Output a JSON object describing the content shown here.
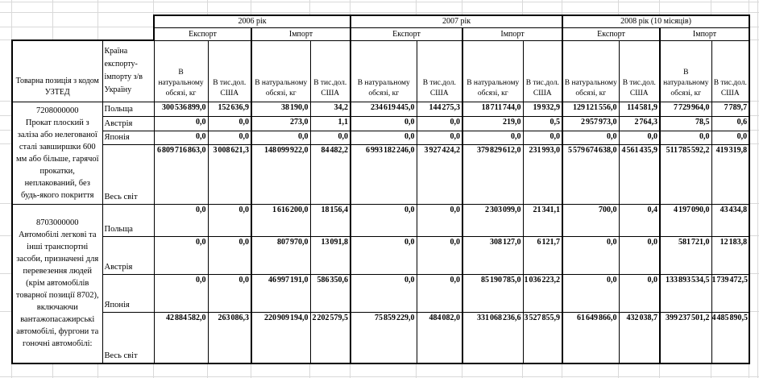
{
  "table": {
    "corner": {
      "product": "Товарна позиція з кодом УЗТЕД",
      "country": "Країна експорту-імпорту з/в Україну"
    },
    "years": [
      {
        "label": "2006 рік"
      },
      {
        "label": "2007 рік"
      },
      {
        "label": "2008 рік (10 місяців)"
      }
    ],
    "flow_labels": [
      "Експорт",
      "Імпорт"
    ],
    "measure_labels": [
      "В натуральному обсязі, кг",
      "В тис.дол. США"
    ],
    "blocks": [
      {
        "code": "7208000000",
        "description": "Прокат плоский з заліза або нелегованої сталі завширшки 600 мм або більше, гарячої прокатки, неплакований, без будь-якого покриття",
        "rows": [
          {
            "country": "Польща",
            "values": [
              "300 536 899,0",
              "152 636,9",
              "38 190,0",
              "34,2",
              "234 619 445,0",
              "144 275,3",
              "18 711 744,0",
              "19 932,9",
              "129 121 556,0",
              "114 581,9",
              "7 729 964,0",
              "7 789,7"
            ]
          },
          {
            "country": "Австрія",
            "values": [
              "0,0",
              "0,0",
              "273,0",
              "1,1",
              "0,0",
              "0,0",
              "219,0",
              "0,5",
              "2 957 973,0",
              "2 764,3",
              "78,5",
              "0,6"
            ]
          },
          {
            "country": "Японія",
            "values": [
              "0,0",
              "0,0",
              "0,0",
              "0,0",
              "0,0",
              "0,0",
              "0,0",
              "0,0",
              "0,0",
              "0,0",
              "0,0",
              "0,0"
            ]
          },
          {
            "country": "Весь світ",
            "values": [
              "6 809 716 863,0",
              "3 008 621,3",
              "148 099 922,0",
              "84 482,2",
              "6 993 182 246,0",
              "3 927 424,2",
              "379 829 612,0",
              "231 993,0",
              "5 579 674 638,0",
              "4 561 435,9",
              "511 785 592,2",
              "419 319,8"
            ]
          }
        ]
      },
      {
        "code": "8703000000",
        "description": "Автомобілі легкові та інші транспортні засоби, призначені для перевезення людей (крім автомобілів товарної позиції 8702), включаючи вантажопасажирські автомобілі, фургони та гоночні автомобілі:",
        "rows": [
          {
            "country": "Польща",
            "values": [
              "0,0",
              "0,0",
              "1 616 200,0",
              "18 156,4",
              "0,0",
              "0,0",
              "2 303 099,0",
              "21 341,1",
              "700,0",
              "0,4",
              "4 197 090,0",
              "43 434,8"
            ]
          },
          {
            "country": "Австрія",
            "values": [
              "0,0",
              "0,0",
              "807 970,0",
              "13 091,8",
              "0,0",
              "0,0",
              "308 127,0",
              "6 121,7",
              "0,0",
              "0,0",
              "581 721,0",
              "12 183,8"
            ]
          },
          {
            "country": "Японія",
            "values": [
              "0,0",
              "0,0",
              "46 997 191,0",
              "586 350,6",
              "0,0",
              "0,0",
              "85 190 785,0",
              "1 036 223,2",
              "0,0",
              "0,0",
              "133 893 534,5",
              "1 739 472,5"
            ]
          },
          {
            "country": "Весь світ",
            "values": [
              "42 884 582,0",
              "263 086,3",
              "220 909 194,0",
              "2 202 579,5",
              "75 859 229,0",
              "484 082,0",
              "331 068 236,6",
              "3 527 855,9",
              "61 649 866,0",
              "432 038,7",
              "399 237 501,2",
              "4 485 890,5"
            ]
          }
        ]
      }
    ]
  }
}
